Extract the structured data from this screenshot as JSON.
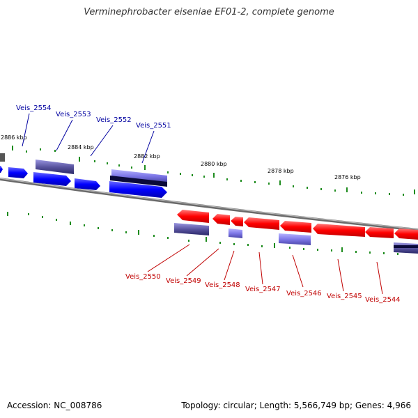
{
  "title": "Verminephrobacter eiseniae EF01-2, complete genome",
  "footer": {
    "accession": "Accession: NC_008786",
    "summary": "Topology: circular; Length: 5,566,749 bp; Genes: 4,966"
  },
  "colors": {
    "forward_cds": "#0000ff",
    "reverse_cds": "#ff0000",
    "rna_feature": "#5a55a0",
    "forward_label": "#0000a0",
    "reverse_label": "#c00000",
    "tick": "#1e8c1e",
    "backbone": "#888888"
  },
  "scale_labels": [
    "2886 kbp",
    "2884 kbp",
    "2882 kbp",
    "2880 kbp",
    "2878 kbp",
    "2876 kbp"
  ],
  "forward_genes": [
    "Veis_2554",
    "Veis_2553",
    "Veis_2552",
    "Veis_2551"
  ],
  "reverse_genes": [
    "Veis_2550",
    "Veis_2549",
    "Veis_2548",
    "Veis_2547",
    "Veis_2546",
    "Veis_2545",
    "Veis_2544"
  ]
}
